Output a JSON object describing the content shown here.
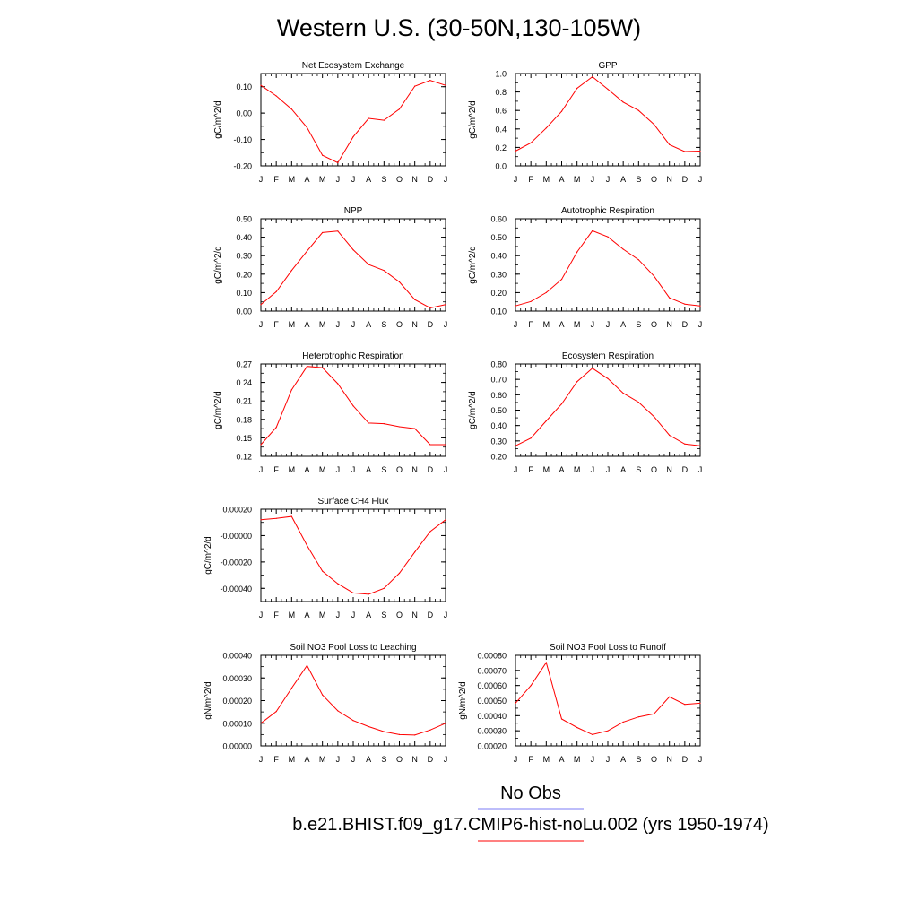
{
  "title": "Western U.S. (30-50N,130-105W)",
  "months": [
    "J",
    "F",
    "M",
    "A",
    "M",
    "J",
    "J",
    "A",
    "S",
    "O",
    "N",
    "D",
    "J"
  ],
  "legend": {
    "items": [
      {
        "label": "No Obs",
        "color": "#7b7bf5"
      },
      {
        "label": "b.e21.BHIST.f09_g17.CMIP6-hist-noLu.002 (yrs 1950-1974)",
        "color": "#ff0000"
      }
    ]
  },
  "colors": {
    "line": "#ff0000"
  },
  "chart_data": [
    {
      "type": "line",
      "title": "Net Ecosystem Exchange",
      "ylabel": "gC/m^2/d",
      "ylim": [
        -0.2,
        0.15
      ],
      "yticks": [
        -0.2,
        -0.1,
        0.0,
        0.1
      ],
      "yticklabels": [
        "-0.20",
        "-0.10",
        "0.00",
        "0.10"
      ],
      "x": [
        "J",
        "F",
        "M",
        "A",
        "M",
        "J",
        "J",
        "A",
        "S",
        "O",
        "N",
        "D",
        "J"
      ],
      "values": [
        0.105,
        0.065,
        0.015,
        -0.055,
        -0.16,
        -0.188,
        -0.09,
        -0.02,
        -0.027,
        0.015,
        0.102,
        0.124,
        0.105
      ]
    },
    {
      "type": "line",
      "title": "GPP",
      "ylabel": "gC/m^2/d",
      "ylim": [
        0.0,
        1.0
      ],
      "yticks": [
        0.0,
        0.2,
        0.4,
        0.6,
        0.8,
        1.0
      ],
      "yticklabels": [
        "0.0",
        "0.2",
        "0.4",
        "0.6",
        "0.8",
        "1.0"
      ],
      "x": [
        "J",
        "F",
        "M",
        "A",
        "M",
        "J",
        "J",
        "A",
        "S",
        "O",
        "N",
        "D",
        "J"
      ],
      "values": [
        0.16,
        0.25,
        0.41,
        0.59,
        0.84,
        0.965,
        0.83,
        0.69,
        0.6,
        0.45,
        0.23,
        0.155,
        0.16
      ]
    },
    {
      "type": "line",
      "title": "NPP",
      "ylabel": "gC/m^2/d",
      "ylim": [
        0.0,
        0.5
      ],
      "yticks": [
        0.0,
        0.1,
        0.2,
        0.3,
        0.4,
        0.5
      ],
      "yticklabels": [
        "0.00",
        "0.10",
        "0.20",
        "0.30",
        "0.40",
        "0.50"
      ],
      "x": [
        "J",
        "F",
        "M",
        "A",
        "M",
        "J",
        "J",
        "A",
        "S",
        "O",
        "N",
        "D",
        "J"
      ],
      "values": [
        0.035,
        0.105,
        0.22,
        0.325,
        0.425,
        0.433,
        0.332,
        0.252,
        0.22,
        0.158,
        0.062,
        0.017,
        0.035
      ]
    },
    {
      "type": "line",
      "title": "Autotrophic Respiration",
      "ylabel": "gC/m^2/d",
      "ylim": [
        0.1,
        0.6
      ],
      "yticks": [
        0.1,
        0.2,
        0.3,
        0.4,
        0.5,
        0.6
      ],
      "yticklabels": [
        "0.10",
        "0.20",
        "0.30",
        "0.40",
        "0.50",
        "0.60"
      ],
      "x": [
        "J",
        "F",
        "M",
        "A",
        "M",
        "J",
        "J",
        "A",
        "S",
        "O",
        "N",
        "D",
        "J"
      ],
      "values": [
        0.128,
        0.152,
        0.2,
        0.272,
        0.42,
        0.535,
        0.502,
        0.435,
        0.378,
        0.29,
        0.172,
        0.138,
        0.128
      ]
    },
    {
      "type": "line",
      "title": "Heterotrophic Respiration",
      "ylabel": "gC/m^2/d",
      "ylim": [
        0.12,
        0.27
      ],
      "yticks": [
        0.12,
        0.15,
        0.18,
        0.21,
        0.24,
        0.27
      ],
      "yticklabels": [
        "0.12",
        "0.15",
        "0.18",
        "0.21",
        "0.24",
        "0.27"
      ],
      "x": [
        "J",
        "F",
        "M",
        "A",
        "M",
        "J",
        "J",
        "A",
        "S",
        "O",
        "N",
        "D",
        "J"
      ],
      "values": [
        0.139,
        0.167,
        0.228,
        0.266,
        0.264,
        0.238,
        0.202,
        0.174,
        0.173,
        0.168,
        0.165,
        0.139,
        0.139
      ]
    },
    {
      "type": "line",
      "title": "Ecosystem Respiration",
      "ylabel": "gC/m^2/d",
      "ylim": [
        0.2,
        0.8
      ],
      "yticks": [
        0.2,
        0.3,
        0.4,
        0.5,
        0.6,
        0.7,
        0.8
      ],
      "yticklabels": [
        "0.20",
        "0.30",
        "0.40",
        "0.50",
        "0.60",
        "0.70",
        "0.80"
      ],
      "x": [
        "J",
        "F",
        "M",
        "A",
        "M",
        "J",
        "J",
        "A",
        "S",
        "O",
        "N",
        "D",
        "J"
      ],
      "values": [
        0.268,
        0.318,
        0.43,
        0.54,
        0.685,
        0.772,
        0.705,
        0.61,
        0.552,
        0.458,
        0.337,
        0.28,
        0.268
      ]
    },
    {
      "type": "line",
      "title": "Surface CH4 Flux",
      "ylabel": "gC/m^2/d",
      "ylim": [
        -0.0005,
        0.0002
      ],
      "yticks": [
        -0.0004,
        -0.0002,
        0.0,
        0.0002
      ],
      "yticklabels": [
        "-0.00040",
        "-0.00020",
        "-0.00000",
        "0.00020"
      ],
      "x": [
        "J",
        "F",
        "M",
        "A",
        "M",
        "J",
        "J",
        "A",
        "S",
        "O",
        "N",
        "D",
        "J"
      ],
      "values": [
        0.00012,
        0.00013,
        0.000145,
        -7.5e-05,
        -0.00027,
        -0.000365,
        -0.000435,
        -0.000445,
        -0.0004,
        -0.000285,
        -0.000125,
        3e-05,
        0.00012
      ]
    },
    {
      "type": "line",
      "title": "Soil NO3 Pool Loss to Leaching",
      "ylabel": "gN/m^2/d",
      "ylim": [
        0.0,
        0.0004
      ],
      "yticks": [
        0.0,
        0.0001,
        0.0002,
        0.0003,
        0.0004
      ],
      "yticklabels": [
        "0.00000",
        "0.00010",
        "0.00020",
        "0.00030",
        "0.00040"
      ],
      "x": [
        "J",
        "F",
        "M",
        "A",
        "M",
        "J",
        "J",
        "A",
        "S",
        "O",
        "N",
        "D",
        "J"
      ],
      "values": [
        0.0001,
        0.000152,
        0.000255,
        0.000355,
        0.000225,
        0.000155,
        0.000112,
        8.5e-05,
        6.3e-05,
        5e-05,
        4.8e-05,
        7e-05,
        0.0001
      ]
    },
    {
      "type": "line",
      "title": "Soil NO3 Pool Loss to Runoff",
      "ylabel": "gN/m^2/d",
      "ylim": [
        0.0002,
        0.0008
      ],
      "yticks": [
        0.0002,
        0.0003,
        0.0004,
        0.0005,
        0.0006,
        0.0007,
        0.0008
      ],
      "yticklabels": [
        "0.00020",
        "0.00030",
        "0.00040",
        "0.00050",
        "0.00060",
        "0.00070",
        "0.00080"
      ],
      "x": [
        "J",
        "F",
        "M",
        "A",
        "M",
        "J",
        "J",
        "A",
        "S",
        "O",
        "N",
        "D",
        "J"
      ],
      "values": [
        0.000483,
        0.0006,
        0.000752,
        0.000378,
        0.000322,
        0.000275,
        0.0003,
        0.000358,
        0.000392,
        0.000412,
        0.000525,
        0.000475,
        0.000483
      ]
    }
  ]
}
